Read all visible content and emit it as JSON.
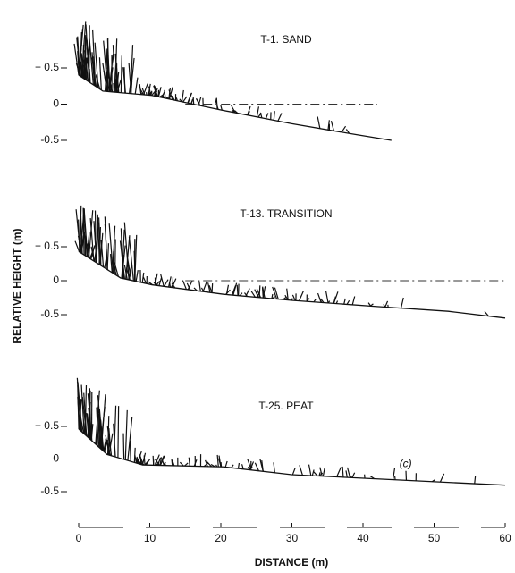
{
  "chart_data": [
    {
      "type": "line",
      "title": "T-1. SAND",
      "x": [
        0,
        3.4,
        10.3,
        20,
        30,
        39,
        44
      ],
      "values": [
        0.4,
        0.18,
        0.12,
        -0.08,
        -0.27,
        -0.42,
        -0.5
      ],
      "xlim": [
        0,
        60
      ],
      "ylim": [
        -0.5,
        0.5
      ],
      "yticks": [
        {
          "value": 0.5,
          "label": "+ 0.5"
        },
        0,
        {
          "value": -0.5,
          "label": "-0.5"
        }
      ]
    },
    {
      "type": "line",
      "title": "T-13. TRANSITION",
      "ylabel": "RELATIVE HEIGHT (m)",
      "x": [
        0,
        5.9,
        10.3,
        20.4,
        30,
        42,
        52,
        60
      ],
      "values": [
        0.43,
        0.04,
        -0.06,
        -0.2,
        -0.29,
        -0.38,
        -0.45,
        -0.55
      ],
      "xlim": [
        0,
        60
      ],
      "ylim": [
        -0.5,
        0.5
      ],
      "yticks": [
        {
          "value": 0.5,
          "label": "+ 0.5"
        },
        0,
        {
          "value": -0.5,
          "label": "-0.5"
        }
      ]
    },
    {
      "type": "line",
      "title": "T-25. PEAT",
      "annotation": "(c)",
      "x": [
        0,
        4,
        9,
        20.4,
        30,
        43,
        60
      ],
      "values": [
        0.46,
        0.07,
        -0.09,
        -0.12,
        -0.24,
        -0.31,
        -0.4
      ],
      "xlim": [
        0,
        60
      ],
      "ylim": [
        -0.5,
        0.5
      ],
      "yticks": [
        {
          "value": 0.5,
          "label": "+ 0.5"
        },
        0,
        {
          "value": -0.5,
          "label": "-0.5"
        }
      ],
      "xlabel": "DISTANCE (m)",
      "xticks": [
        0,
        10,
        20,
        30,
        40,
        50,
        60
      ]
    }
  ]
}
